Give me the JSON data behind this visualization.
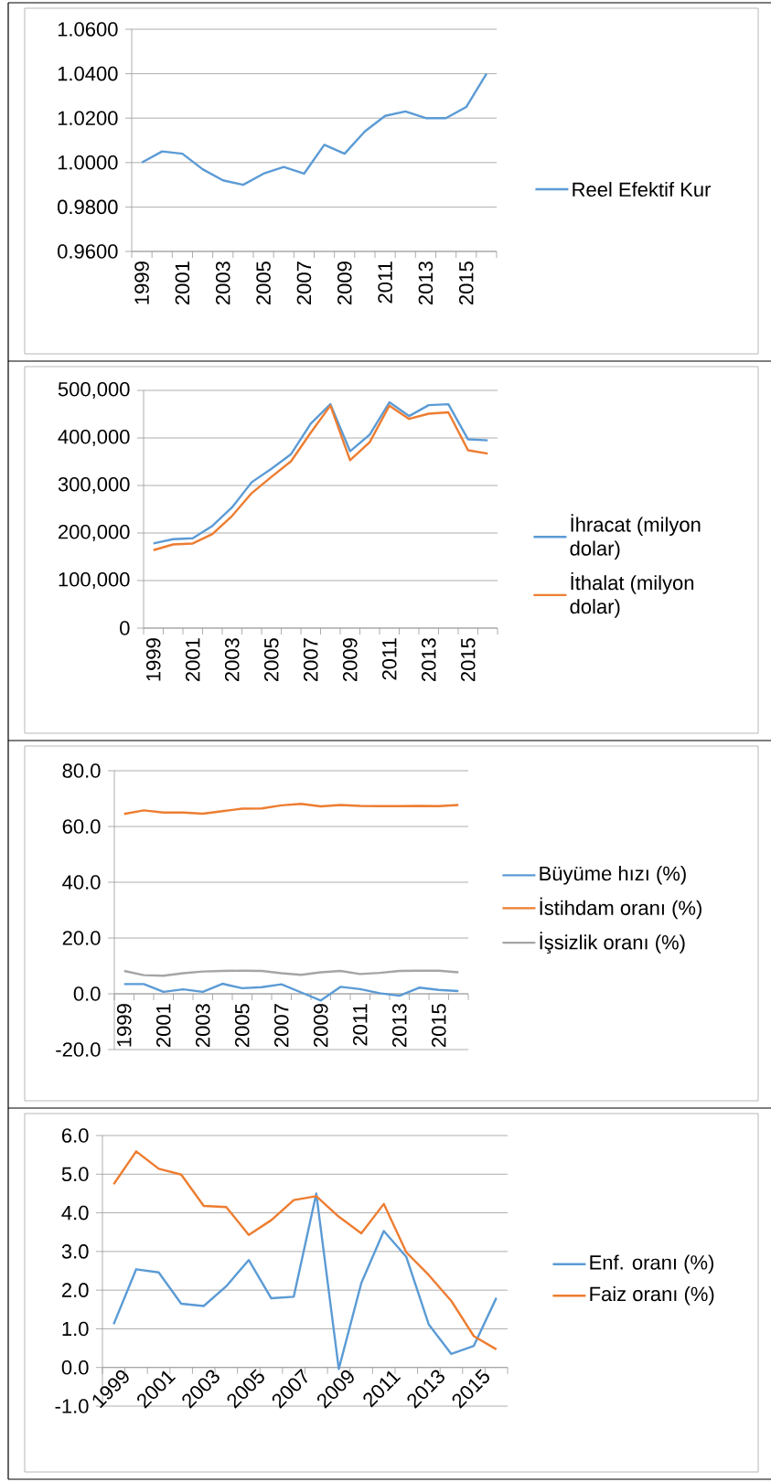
{
  "chart_data": [
    {
      "type": "line",
      "categories": [
        "1999",
        null,
        "2001",
        null,
        "2003",
        null,
        "2005",
        null,
        "2007",
        null,
        "2009",
        null,
        "2011",
        null,
        "2013",
        null,
        "2015",
        null
      ],
      "series": [
        {
          "name": "Reel Efektif Kur",
          "color": "#5b9bd5",
          "values": [
            1.0,
            1.005,
            1.004,
            0.997,
            0.992,
            0.99,
            0.995,
            0.998,
            0.995,
            1.008,
            1.004,
            1.014,
            1.021,
            1.023,
            1.02,
            1.02,
            1.025,
            1.04
          ]
        }
      ],
      "ylim": [
        0.96,
        1.06
      ],
      "yticks": [
        {
          "value": 0.96,
          "label": "0.9600"
        },
        {
          "value": 0.98,
          "label": "0.9800"
        },
        {
          "value": 1.0,
          "label": "1.0000"
        },
        {
          "value": 1.02,
          "label": "1.0200"
        },
        {
          "value": 1.04,
          "label": "1.0400"
        },
        {
          "value": 1.06,
          "label": "1.0600"
        }
      ],
      "grid": "y",
      "legend": "right"
    },
    {
      "type": "line",
      "categories": [
        "1999",
        null,
        "2001",
        null,
        "2003",
        null,
        "2005",
        null,
        "2007",
        null,
        "2009",
        null,
        "2011",
        null,
        "2013",
        null,
        "2015",
        null
      ],
      "series": [
        {
          "name": "İhracat (milyon dolar)",
          "color": "#5b9bd5",
          "values": [
            178000,
            187000,
            189000,
            215000,
            254000,
            307000,
            335000,
            366000,
            430000,
            471000,
            372000,
            407000,
            475000,
            446000,
            469000,
            471000,
            397000,
            395000
          ]
        },
        {
          "name": "İthalat (milyon dolar)",
          "color": "#ed7d31",
          "values": [
            164000,
            176000,
            178000,
            198000,
            236000,
            284000,
            318000,
            351000,
            411000,
            468000,
            353000,
            391000,
            468000,
            440000,
            451000,
            454000,
            374000,
            367000
          ]
        }
      ],
      "ylim": [
        0,
        500000
      ],
      "yticks": [
        {
          "value": 0,
          "label": "0"
        },
        {
          "value": 100000,
          "label": "100,000"
        },
        {
          "value": 200000,
          "label": "200,000"
        },
        {
          "value": 300000,
          "label": "300,000"
        },
        {
          "value": 400000,
          "label": "400,000"
        },
        {
          "value": 500000,
          "label": "500,000"
        }
      ],
      "grid": "y",
      "legend": "right"
    },
    {
      "type": "line",
      "categories": [
        "1999",
        null,
        "2001",
        null,
        "2003",
        null,
        "2005",
        null,
        "2007",
        null,
        "2009",
        null,
        "2011",
        null,
        "2013",
        null,
        "2015",
        null
      ],
      "series": [
        {
          "name": "Büyüme hızı (%)",
          "color": "#5b9bd5",
          "values": [
            3.5,
            3.5,
            0.7,
            1.6,
            0.7,
            3.6,
            2.0,
            2.4,
            3.4,
            0.5,
            -2.4,
            2.5,
            1.7,
            0.2,
            -0.7,
            2.2,
            1.4,
            1.0
          ]
        },
        {
          "name": "İstihdam oranı (%)",
          "color": "#ed7d31",
          "values": [
            64.5,
            65.8,
            65.0,
            65.0,
            64.6,
            65.5,
            66.4,
            66.5,
            67.6,
            68.1,
            67.2,
            67.7,
            67.4,
            67.3,
            67.3,
            67.4,
            67.3,
            67.7
          ]
        },
        {
          "name": "İşsizlik oranı (%)",
          "color": "#a5a5a5",
          "values": [
            8.2,
            6.7,
            6.5,
            7.4,
            8.0,
            8.2,
            8.3,
            8.2,
            7.4,
            6.8,
            7.7,
            8.2,
            7.1,
            7.5,
            8.2,
            8.3,
            8.3,
            7.7
          ]
        }
      ],
      "ylim": [
        -20,
        80
      ],
      "yticks": [
        {
          "value": -20,
          "label": "-20.0"
        },
        {
          "value": 0,
          "label": "0.0"
        },
        {
          "value": 20,
          "label": "20.0"
        },
        {
          "value": 40,
          "label": "40.0"
        },
        {
          "value": 60,
          "label": "60.0"
        },
        {
          "value": 80,
          "label": "80.0"
        }
      ],
      "grid": "y",
      "legend": "right"
    },
    {
      "type": "line",
      "categories": [
        "1999",
        null,
        "2001",
        null,
        "2003",
        null,
        "2005",
        null,
        "2007",
        null,
        "2009",
        null,
        "2011",
        null,
        "2013",
        null,
        "2015",
        null
      ],
      "series": [
        {
          "name": "Enf. oranı (%)",
          "color": "#5b9bd5",
          "values": [
            1.12,
            2.54,
            2.46,
            1.65,
            1.59,
            2.1,
            2.78,
            1.79,
            1.83,
            4.5,
            -0.04,
            2.18,
            3.53,
            2.86,
            1.11,
            0.35,
            0.56,
            1.8
          ]
        },
        {
          "name": "Faiz oranı (%)",
          "color": "#ed7d31",
          "values": [
            4.74,
            5.59,
            5.14,
            4.99,
            4.18,
            4.15,
            3.43,
            3.81,
            4.33,
            4.43,
            3.9,
            3.47,
            4.23,
            2.98,
            2.39,
            1.72,
            0.81,
            0.47
          ]
        }
      ],
      "ylim": [
        -1,
        6
      ],
      "yticks": [
        {
          "value": -1,
          "label": "-1.0"
        },
        {
          "value": 0,
          "label": "0.0"
        },
        {
          "value": 1,
          "label": "1.0"
        },
        {
          "value": 2,
          "label": "2.0"
        },
        {
          "value": 3,
          "label": "3.0"
        },
        {
          "value": 4,
          "label": "4.0"
        },
        {
          "value": 5,
          "label": "5.0"
        },
        {
          "value": 6,
          "label": "6.0"
        }
      ],
      "grid": "y",
      "legend": "right"
    }
  ]
}
